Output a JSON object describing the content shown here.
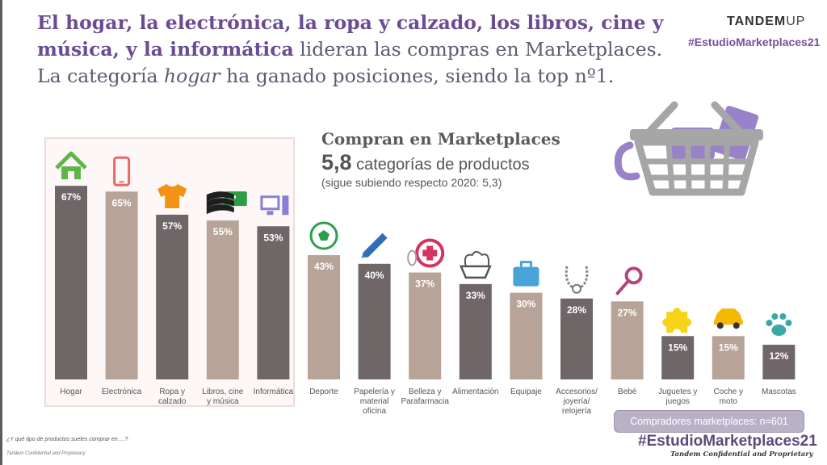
{
  "headline": {
    "bold1": "El hogar, la electrónica, la ropa y calzado, los libros, cine y música, y la informática",
    "normal1": " lideran las compras en Marketplaces. La categoría ",
    "italic": "hogar",
    "normal2": " ha ganado posiciones, siendo la top nº1."
  },
  "logo": {
    "text": "TANDEM",
    "suffix": "UP"
  },
  "hashtag": "#EstudioMarketplaces21",
  "summary": {
    "line1": "Compran en Marketplaces",
    "value": "5,8",
    "unit": " categorías de productos",
    "note": "(sigue subiendo respecto 2020: 5,3)"
  },
  "sample_note": "Compradores marketplaces: n=601",
  "question": "¿Y qué tipo de productos sueles comprar en….?",
  "confidential": "Tandem Confidential and Proprietary",
  "colors": {
    "dark_bar": "#6f6668",
    "light_bar": "#b7a397",
    "accent": "#6a4c93"
  },
  "chart_data": {
    "type": "bar",
    "title": "",
    "xlabel": "",
    "ylabel": "",
    "ylim": [
      0,
      70
    ],
    "categories": [
      {
        "label": [
          "Hogar"
        ],
        "value": 67,
        "label_text": "67%",
        "icon": "house-icon",
        "shade": "dark"
      },
      {
        "label": [
          "Electrónica"
        ],
        "value": 65,
        "label_text": "65%",
        "icon": "smartphone-icon",
        "shade": "light"
      },
      {
        "label": [
          "Ropa y",
          "calzado"
        ],
        "value": 57,
        "label_text": "57%",
        "icon": "tshirt-icon",
        "shade": "dark"
      },
      {
        "label": [
          "Libros, cine",
          "y música"
        ],
        "value": 55,
        "label_text": "55%",
        "icon": "books-film-icon",
        "shade": "light"
      },
      {
        "label": [
          "Informática"
        ],
        "value": 53,
        "label_text": "53%",
        "icon": "computer-icon",
        "shade": "dark"
      },
      {
        "label": [
          "Deporte"
        ],
        "value": 43,
        "label_text": "43%",
        "icon": "soccer-ball-icon",
        "shade": "light"
      },
      {
        "label": [
          "Papelería y",
          "material",
          "oficina"
        ],
        "value": 40,
        "label_text": "40%",
        "icon": "pencil-icon",
        "shade": "dark"
      },
      {
        "label": [
          "Belleza y",
          "Parafarmacia"
        ],
        "value": 37,
        "label_text": "37%",
        "icon": "pharmacy-cross-icon",
        "shade": "light"
      },
      {
        "label": [
          "Alimentación"
        ],
        "value": 33,
        "label_text": "33%",
        "icon": "food-basket-icon",
        "shade": "dark"
      },
      {
        "label": [
          "Equipaje"
        ],
        "value": 30,
        "label_text": "30%",
        "icon": "suitcase-icon",
        "shade": "light"
      },
      {
        "label": [
          "Accesorios/",
          "joyería/",
          "relojería"
        ],
        "value": 28,
        "label_text": "28%",
        "icon": "necklace-icon",
        "shade": "dark"
      },
      {
        "label": [
          "Bebé"
        ],
        "value": 27,
        "label_text": "27%",
        "icon": "rattle-icon",
        "shade": "light"
      },
      {
        "label": [
          "Juguetes y",
          "juegos"
        ],
        "value": 15,
        "label_text": "15%",
        "icon": "puzzle-icon",
        "shade": "dark"
      },
      {
        "label": [
          "Coche y",
          "moto"
        ],
        "value": 15,
        "label_text": "15%",
        "icon": "car-icon",
        "shade": "light"
      },
      {
        "label": [
          "Mascotas"
        ],
        "value": 12,
        "label_text": "12%",
        "icon": "paw-icon",
        "shade": "dark"
      }
    ]
  }
}
